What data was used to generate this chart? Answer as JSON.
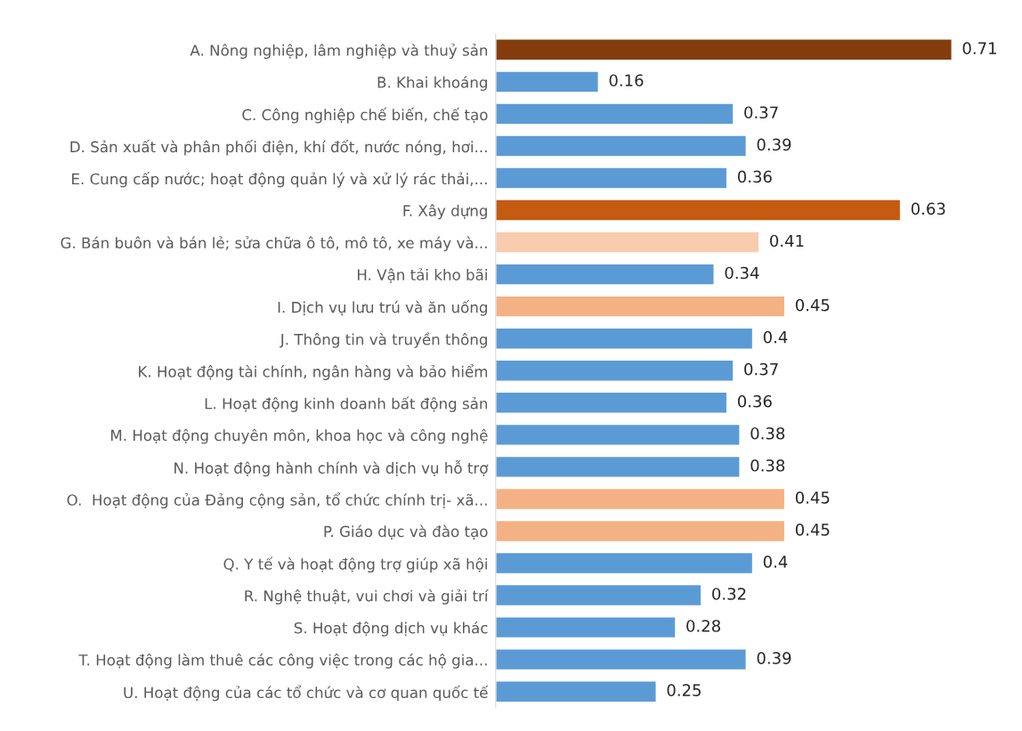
{
  "chart_data": {
    "type": "bar",
    "orientation": "horizontal",
    "categories": [
      "A. Nông nghiệp, lâm nghiệp và thuỷ sản",
      "B. Khai khoáng",
      "C. Công nghiệp chế biến, chế tạo",
      "D. Sản xuất và phân phối điện, khí đốt, nước nóng, hơi...",
      "E. Cung cấp nước; hoạt động quản lý và xử lý rác thải,...",
      "F. Xây dựng",
      "G. Bán buôn và bán lẻ; sửa chữa ô tô, mô tô, xe máy và...",
      "H. Vận tải kho bãi",
      "I. Dịch vụ lưu trú và ăn uống",
      "J. Thông tin và truyền thông",
      "K. Hoạt động tài chính, ngân hàng và bảo hiểm",
      "L. Hoạt động kinh doanh bất động sản",
      "M. Hoạt động chuyên môn, khoa học và công nghệ",
      "N. Hoạt động hành chính và dịch vụ hỗ trợ",
      "O.  Hoạt động của Đảng cộng sản, tổ chức chính trị- xã...",
      "P. Giáo dục và đào tạo",
      "Q. Y tế và hoạt động trợ giúp xã hội",
      "R. Nghệ thuật, vui chơi và giải trí",
      "S. Hoạt động dịch vụ khác",
      "T. Hoạt động làm thuê các công việc trong các hộ gia...",
      "U. Hoạt động của các tổ chức và cơ quan quốc tế"
    ],
    "values": [
      0.71,
      0.16,
      0.37,
      0.39,
      0.36,
      0.63,
      0.41,
      0.34,
      0.45,
      0.4,
      0.37,
      0.36,
      0.38,
      0.38,
      0.45,
      0.45,
      0.4,
      0.32,
      0.28,
      0.39,
      0.25
    ],
    "colors": [
      "#843c0c",
      "#5b9bd5",
      "#5b9bd5",
      "#5b9bd5",
      "#5b9bd5",
      "#c55a11",
      "#f8cbad",
      "#5b9bd5",
      "#f4b183",
      "#5b9bd5",
      "#5b9bd5",
      "#5b9bd5",
      "#5b9bd5",
      "#5b9bd5",
      "#f4b183",
      "#f4b183",
      "#5b9bd5",
      "#5b9bd5",
      "#5b9bd5",
      "#5b9bd5",
      "#5b9bd5"
    ],
    "data_labels": true,
    "grid": false,
    "legend": false
  }
}
